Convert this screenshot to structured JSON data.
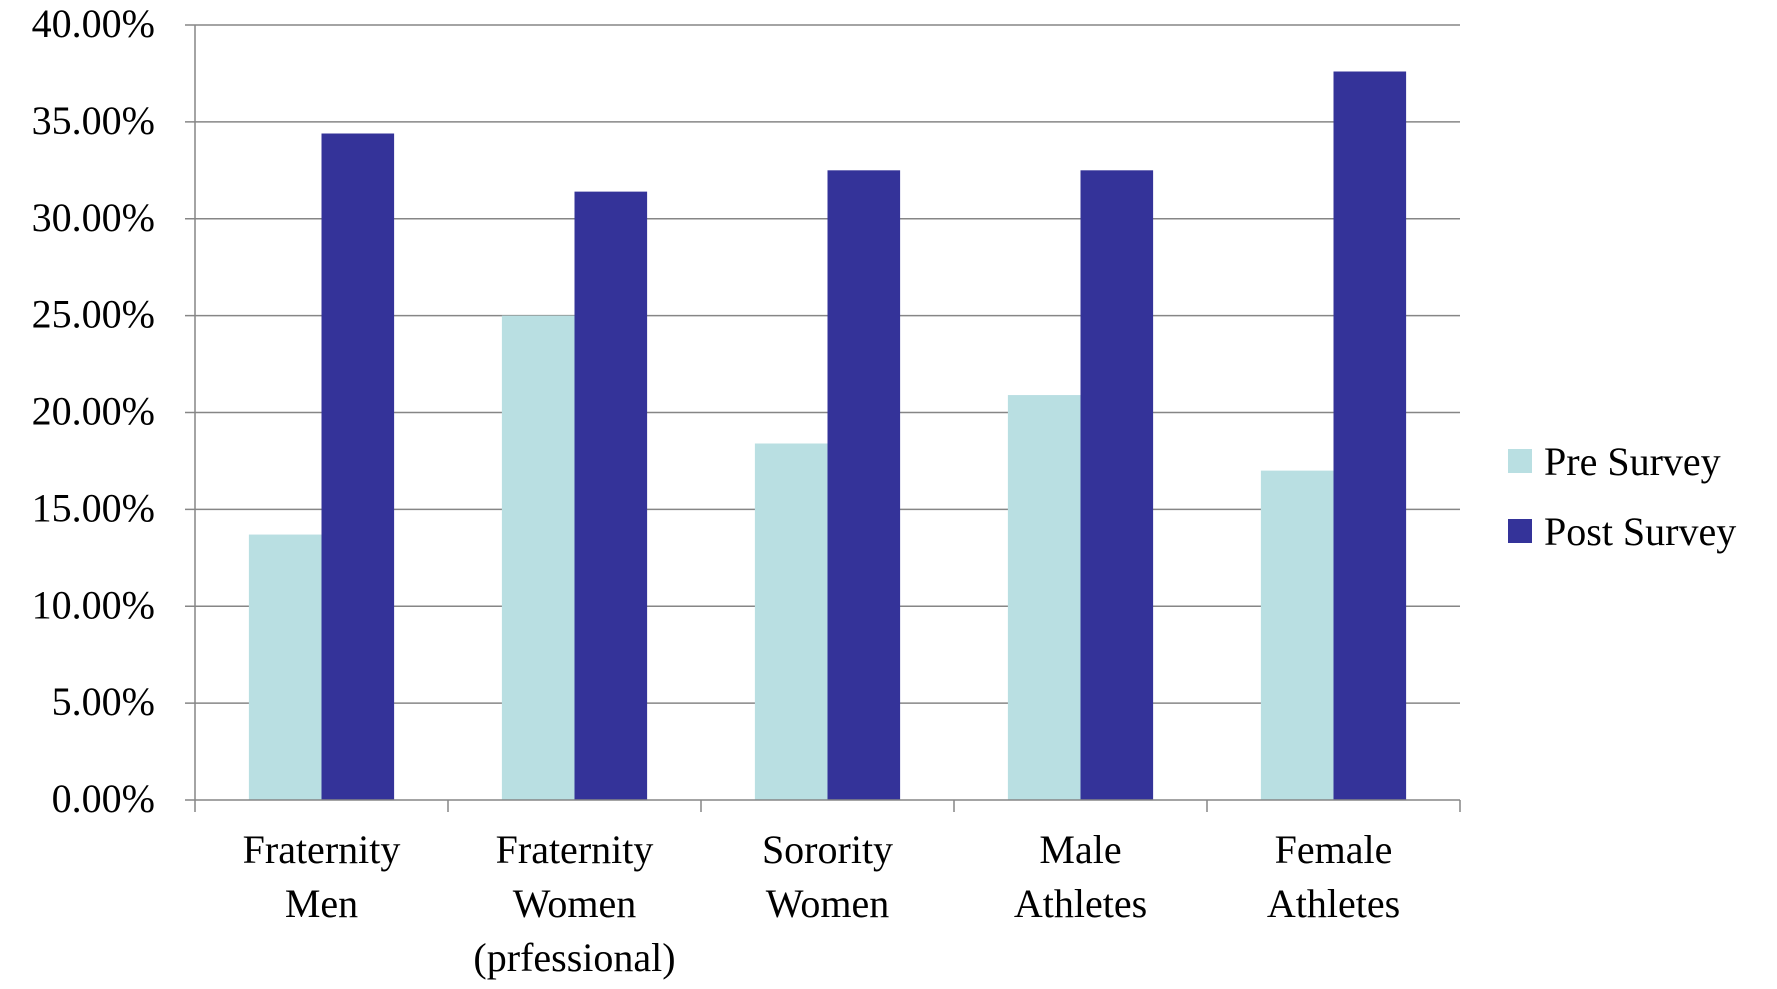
{
  "chart_data": {
    "type": "bar",
    "title": "",
    "xlabel": "",
    "ylabel": "",
    "ylim": [
      0,
      40
    ],
    "y_tick_step": 5,
    "y_tick_format": "percent_2dp",
    "grid": true,
    "legend_position": "right",
    "categories": [
      [
        "Fraternity",
        "Men"
      ],
      [
        "Fraternity",
        "Women",
        "(prfessional)"
      ],
      [
        "Sorority",
        "Women"
      ],
      [
        "Male",
        "Athletes"
      ],
      [
        "Female",
        "Athletes"
      ]
    ],
    "series": [
      {
        "name": "Pre Survey",
        "color": "#b9dfe2",
        "values": [
          13.7,
          25.0,
          18.4,
          20.9,
          17.0
        ]
      },
      {
        "name": "Post Survey",
        "color": "#343399",
        "values": [
          34.4,
          31.4,
          32.5,
          32.5,
          37.6
        ]
      }
    ]
  }
}
